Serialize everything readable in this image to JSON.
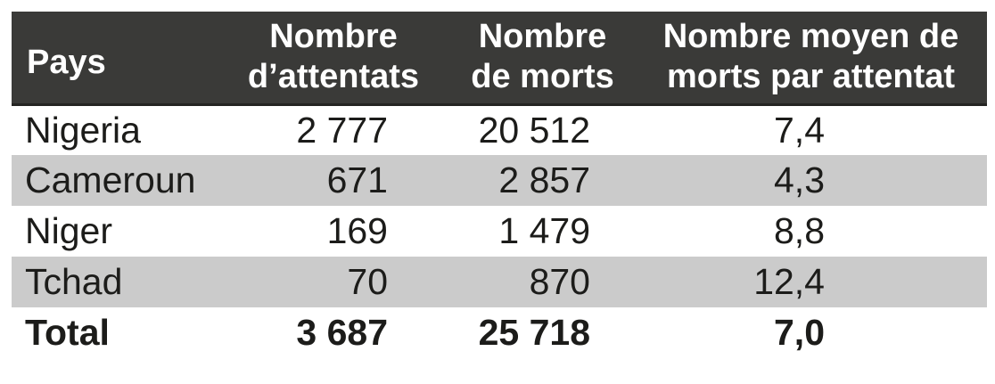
{
  "colors": {
    "header_bg": "#3a3a38",
    "header_text": "#ffffff",
    "row_stripe_bg": "#cbcbcb",
    "row_plain_bg": "#ffffff",
    "body_text": "#1c1c1a"
  },
  "table": {
    "header": {
      "pays": "Pays",
      "attentats_line1": "Nombre",
      "attentats_line2": "d’attentats",
      "morts_line1": "Nombre",
      "morts_line2": "de morts",
      "moyenne_line1": "Nombre moyen de",
      "moyenne_line2": "morts par attentat"
    },
    "rows": [
      {
        "pays": "Nigeria",
        "attentats": "2 777",
        "morts": "20 512",
        "moyenne": "7,4"
      },
      {
        "pays": "Cameroun",
        "attentats": "671",
        "morts": "2 857",
        "moyenne": "4,3"
      },
      {
        "pays": "Niger",
        "attentats": "169",
        "morts": "1 479",
        "moyenne": "8,8"
      },
      {
        "pays": "Tchad",
        "attentats": "70",
        "morts": "870",
        "moyenne": "12,4"
      }
    ],
    "total": {
      "pays": "Total",
      "attentats": "3 687",
      "morts": "25 718",
      "moyenne": "7,0"
    }
  },
  "chart_data": {
    "type": "table",
    "columns": [
      "Pays",
      "Nombre d’attentats",
      "Nombre de morts",
      "Nombre moyen de morts par attentat"
    ],
    "rows": [
      [
        "Nigeria",
        2777,
        20512,
        7.4
      ],
      [
        "Cameroun",
        671,
        2857,
        4.3
      ],
      [
        "Niger",
        169,
        1479,
        8.8
      ],
      [
        "Tchad",
        70,
        870,
        12.4
      ]
    ],
    "total_row": [
      "Total",
      3687,
      25718,
      7.0
    ]
  }
}
